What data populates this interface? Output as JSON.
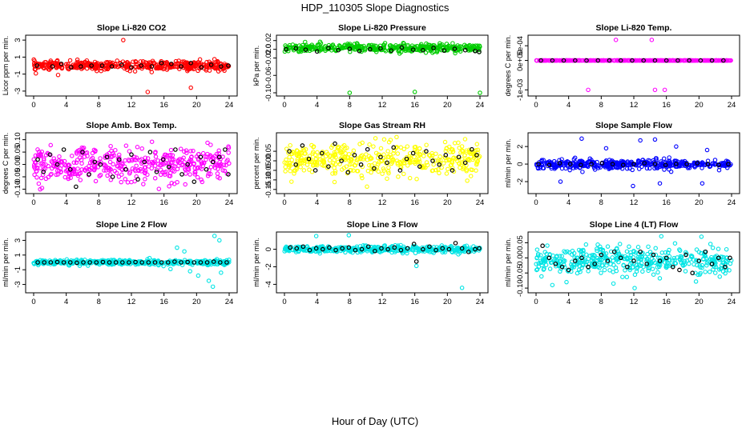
{
  "figure": {
    "title": "HDP_110305  Slope Diagnostics",
    "xlabel": "Hour of Day (UTC)"
  },
  "chart_data": [
    {
      "type": "scatter",
      "title": "Slope Li-820 CO2",
      "ylabel": "Licor ppm per min.",
      "color": "#ff0000",
      "xlim": [
        0,
        24
      ],
      "ylim": [
        -3.2,
        3.2
      ],
      "xticks": [
        0,
        4,
        8,
        12,
        16,
        20,
        24
      ],
      "yticks": [
        -3,
        -1,
        1,
        3
      ],
      "ytick_labels": [
        "-3",
        "-1",
        "1",
        "3"
      ],
      "noise": 0.35,
      "outliers": [
        [
          11,
          3.0
        ],
        [
          14,
          -3.1
        ],
        [
          19.3,
          -2.6
        ],
        [
          3,
          -1.1
        ]
      ],
      "black_series": [
        [
          0.4,
          0.0
        ],
        [
          2.3,
          -0.1
        ],
        [
          3.4,
          0.2
        ],
        [
          4.6,
          -0.2
        ],
        [
          5.8,
          -0.1
        ],
        [
          7.1,
          0.0
        ],
        [
          8.4,
          0.0
        ],
        [
          9.6,
          -0.1
        ],
        [
          10.8,
          0.1
        ],
        [
          12.0,
          -0.2
        ],
        [
          13.2,
          0.0
        ],
        [
          14.5,
          -0.1
        ],
        [
          15.7,
          0.3
        ],
        [
          16.9,
          0.2
        ],
        [
          18.1,
          -0.1
        ],
        [
          19.3,
          0.3
        ],
        [
          20.6,
          -0.2
        ],
        [
          21.8,
          0.1
        ],
        [
          23.0,
          -0.1
        ],
        [
          23.9,
          0.0
        ]
      ]
    },
    {
      "type": "scatter",
      "title": "Slope Li-820 Pressure",
      "ylabel": "kPa per min.",
      "color": "#00cc00",
      "xlim": [
        0,
        24
      ],
      "ylim": [
        -0.1,
        0.025
      ],
      "xticks": [
        0,
        4,
        8,
        12,
        16,
        20,
        24
      ],
      "yticks": [
        -0.1,
        -0.06,
        -0.02,
        0.0,
        0.02
      ],
      "ytick_labels": [
        "-0.10",
        "-0.06",
        "-0.02",
        "0.0",
        "0.02"
      ],
      "center": 0.003,
      "noise": 0.006,
      "outliers": [
        [
          8,
          -0.1
        ],
        [
          16,
          -0.098
        ],
        [
          24,
          -0.1
        ]
      ],
      "black_series": [
        [
          0.2,
          0.0
        ],
        [
          1.4,
          0.002
        ],
        [
          2.6,
          -0.001
        ],
        [
          4.0,
          -0.005
        ],
        [
          5.4,
          0.003
        ],
        [
          6.6,
          -0.002
        ],
        [
          8.0,
          0.001
        ],
        [
          9.2,
          -0.004
        ],
        [
          10.5,
          0.0
        ],
        [
          11.8,
          0.002
        ],
        [
          13.1,
          -0.003
        ],
        [
          14.4,
          0.004
        ],
        [
          15.8,
          -0.001
        ],
        [
          17.0,
          -0.002
        ],
        [
          18.3,
          0.003
        ],
        [
          19.6,
          -0.003
        ],
        [
          20.9,
          0.001
        ],
        [
          22.2,
          -0.002
        ],
        [
          23.4,
          -0.004
        ],
        [
          23.9,
          -0.006
        ]
      ]
    },
    {
      "type": "scatter",
      "title": "Slope Li-820 Temp.",
      "ylabel": "degrees C per min.",
      "color": "#ff00ff",
      "xlim": [
        0,
        24
      ],
      "ylim": [
        -0.0011,
        0.00075
      ],
      "xticks": [
        0,
        4,
        8,
        12,
        16,
        20,
        24
      ],
      "yticks": [
        -0.001,
        0.0,
        0.0005
      ],
      "ytick_labels": [
        "-1e-03",
        "0e+00",
        "5e-04"
      ],
      "center": 0,
      "noise": 2e-06,
      "outliers": [
        [
          9.8,
          0.0007
        ],
        [
          14.2,
          0.0007
        ],
        [
          6.4,
          -0.001
        ],
        [
          14.6,
          -0.001
        ],
        [
          15.8,
          -0.001
        ]
      ],
      "black_series": [
        [
          0.6,
          0.0
        ],
        [
          2.0,
          0.0
        ],
        [
          3.4,
          0.0
        ],
        [
          4.8,
          0.0
        ],
        [
          6.2,
          0.0
        ],
        [
          7.6,
          0.0
        ],
        [
          9.0,
          0.0
        ],
        [
          10.4,
          0.0
        ],
        [
          11.8,
          0.0
        ],
        [
          13.2,
          0.0
        ],
        [
          14.6,
          0.0
        ],
        [
          16.0,
          0.0
        ],
        [
          17.4,
          0.0
        ],
        [
          18.8,
          0.0
        ],
        [
          20.2,
          0.0
        ],
        [
          21.6,
          0.0
        ],
        [
          23.0,
          0.0
        ]
      ]
    },
    {
      "type": "scatter",
      "title": "Slope Amb. Box Temp.",
      "ylabel": "degrees C per min.",
      "color": "#ff00ff",
      "xlim": [
        0,
        24
      ],
      "ylim": [
        -0.105,
        0.115
      ],
      "xticks": [
        0,
        4,
        8,
        12,
        16,
        20,
        24
      ],
      "yticks": [
        -0.1,
        -0.05,
        0.0,
        0.05,
        0.1
      ],
      "ytick_labels": [
        "-0.10",
        "-0.05",
        "0.00",
        "0.05",
        "0.10"
      ],
      "center": 0,
      "noise": 0.045,
      "outliers": [],
      "black_series": [
        [
          0.5,
          0.02
        ],
        [
          1.2,
          -0.03
        ],
        [
          2.0,
          0.04
        ],
        [
          2.9,
          0.0
        ],
        [
          3.7,
          0.06
        ],
        [
          4.5,
          -0.02
        ],
        [
          5.2,
          -0.09
        ],
        [
          6.0,
          0.05
        ],
        [
          6.8,
          -0.04
        ],
        [
          7.5,
          0.01
        ],
        [
          8.2,
          0.0
        ],
        [
          9.0,
          0.03
        ],
        [
          9.7,
          -0.05
        ],
        [
          10.5,
          0.02
        ],
        [
          11.3,
          -0.02
        ],
        [
          12.0,
          0.04
        ],
        [
          12.8,
          -0.06
        ],
        [
          13.6,
          0.01
        ],
        [
          14.3,
          0.05
        ],
        [
          15.1,
          -0.03
        ],
        [
          15.9,
          0.02
        ],
        [
          16.6,
          -0.01
        ],
        [
          17.4,
          0.06
        ],
        [
          18.2,
          -0.04
        ],
        [
          18.9,
          0.0
        ],
        [
          19.7,
          -0.07
        ],
        [
          20.5,
          0.03
        ],
        [
          21.2,
          -0.02
        ],
        [
          22.0,
          0.01
        ],
        [
          22.8,
          0.03
        ],
        [
          23.5,
          0.06
        ],
        [
          23.9,
          -0.04
        ]
      ]
    },
    {
      "type": "scatter",
      "title": "Slope Gas Stream RH",
      "ylabel": "percent per min.",
      "color": "#ffff00",
      "xlim": [
        0,
        24
      ],
      "ylim": [
        -0.155,
        0.13
      ],
      "xticks": [
        0,
        4,
        8,
        12,
        16,
        20,
        24
      ],
      "yticks": [
        -0.15,
        -0.1,
        -0.05,
        0.0,
        0.05
      ],
      "ytick_labels": [
        "-0.15",
        "-0.10",
        "-0.05",
        "0.00",
        "0.05"
      ],
      "center": 0,
      "noise": 0.06,
      "outliers": [],
      "black_series": [
        [
          0.6,
          0.05
        ],
        [
          1.4,
          -0.02
        ],
        [
          2.2,
          0.08
        ],
        [
          3.0,
          0.01
        ],
        [
          3.8,
          -0.05
        ],
        [
          4.6,
          0.04
        ],
        [
          5.4,
          -0.03
        ],
        [
          6.2,
          0.09
        ],
        [
          7.0,
          0.0
        ],
        [
          7.8,
          -0.06
        ],
        [
          8.6,
          0.03
        ],
        [
          9.4,
          -0.02
        ],
        [
          10.2,
          0.06
        ],
        [
          11.0,
          -0.04
        ],
        [
          11.8,
          0.02
        ],
        [
          12.6,
          -0.01
        ],
        [
          13.4,
          0.07
        ],
        [
          14.2,
          -0.05
        ],
        [
          15.0,
          0.01
        ],
        [
          15.8,
          0.04
        ],
        [
          16.6,
          -0.03
        ],
        [
          17.4,
          0.05
        ],
        [
          18.2,
          0.0
        ],
        [
          19.0,
          -0.02
        ],
        [
          19.8,
          0.03
        ],
        [
          20.6,
          -0.05
        ],
        [
          21.4,
          0.02
        ],
        [
          22.2,
          -0.01
        ],
        [
          23.0,
          0.06
        ],
        [
          23.6,
          0.03
        ]
      ]
    },
    {
      "type": "scatter",
      "title": "Slope Sample Flow",
      "ylabel": "ml/min per min.",
      "color": "#0000ff",
      "xlim": [
        0,
        24
      ],
      "ylim": [
        -3,
        3.2
      ],
      "xticks": [
        0,
        4,
        8,
        12,
        16,
        20,
        24
      ],
      "yticks": [
        -2,
        0,
        2
      ],
      "ytick_labels": [
        "-2",
        "0",
        "2"
      ],
      "center": 0,
      "noise": 0.35,
      "outliers": [
        [
          5.6,
          2.9
        ],
        [
          12.8,
          2.7
        ],
        [
          14.6,
          2.8
        ],
        [
          15.2,
          -2.2
        ],
        [
          11.9,
          -2.5
        ],
        [
          20.4,
          -2.2
        ],
        [
          3.0,
          -2.0
        ],
        [
          17.2,
          2.0
        ],
        [
          8.6,
          1.8
        ],
        [
          21.0,
          1.6
        ]
      ],
      "black_series": [
        [
          0.3,
          0.0
        ],
        [
          1.6,
          -0.1
        ],
        [
          2.9,
          0.1
        ],
        [
          4.2,
          0.0
        ],
        [
          5.5,
          -0.1
        ],
        [
          6.8,
          0.0
        ],
        [
          8.1,
          0.1
        ],
        [
          9.4,
          0.0
        ],
        [
          10.7,
          -0.1
        ],
        [
          12.0,
          0.0
        ],
        [
          13.3,
          0.1
        ],
        [
          14.6,
          0.0
        ],
        [
          15.9,
          -0.1
        ],
        [
          17.2,
          0.0
        ],
        [
          18.5,
          0.0
        ],
        [
          19.8,
          0.1
        ],
        [
          21.1,
          0.0
        ],
        [
          22.4,
          -0.1
        ],
        [
          23.6,
          0.0
        ]
      ]
    },
    {
      "type": "scatter",
      "title": "Slope Line 2 Flow",
      "ylabel": "ml/min per min.",
      "color": "#00e5e5",
      "xlim": [
        0,
        24
      ],
      "ylim": [
        -3.7,
        3.7
      ],
      "xticks": [
        0,
        4,
        8,
        12,
        16,
        20,
        24
      ],
      "yticks": [
        -3,
        -1,
        1,
        3
      ],
      "ytick_labels": [
        "-3",
        "-1",
        "1",
        "3"
      ],
      "center": 0,
      "noise": 0.22,
      "outliers": [
        [
          22.2,
          3.6
        ],
        [
          22.8,
          3.0
        ],
        [
          21.5,
          -2.5
        ],
        [
          22.0,
          -3.3
        ],
        [
          17.6,
          2.0
        ],
        [
          18.5,
          1.5
        ],
        [
          20.2,
          -1.8
        ],
        [
          23.0,
          -1.4
        ],
        [
          16.8,
          -0.9
        ],
        [
          19.2,
          -1.2
        ]
      ],
      "black_series": [
        [
          0.5,
          0.0
        ],
        [
          1.3,
          0.0
        ],
        [
          2.1,
          0.0
        ],
        [
          2.9,
          0.05
        ],
        [
          3.7,
          0.0
        ],
        [
          4.5,
          0.0
        ],
        [
          5.3,
          -0.05
        ],
        [
          6.1,
          0.0
        ],
        [
          6.9,
          0.0
        ],
        [
          7.7,
          0.0
        ],
        [
          8.5,
          0.05
        ],
        [
          9.3,
          0.0
        ],
        [
          10.1,
          0.0
        ],
        [
          10.9,
          0.0
        ],
        [
          11.7,
          0.0
        ],
        [
          12.5,
          0.05
        ],
        [
          13.3,
          0.0
        ],
        [
          14.1,
          0.0
        ],
        [
          14.9,
          0.0
        ],
        [
          15.7,
          0.0
        ],
        [
          16.5,
          0.0
        ],
        [
          17.3,
          0.1
        ],
        [
          18.1,
          0.0
        ],
        [
          18.9,
          0.05
        ],
        [
          19.7,
          0.0
        ],
        [
          20.5,
          0.0
        ],
        [
          21.3,
          0.0
        ],
        [
          22.1,
          0.1
        ],
        [
          22.9,
          0.0
        ],
        [
          23.7,
          0.0
        ]
      ]
    },
    {
      "type": "scatter",
      "title": "Slope Line 3 Flow",
      "ylabel": "ml/min per min.",
      "color": "#00e5e5",
      "xlim": [
        0,
        24
      ],
      "ylim": [
        -4.6,
        1.6
      ],
      "xticks": [
        0,
        4,
        8,
        12,
        16,
        20,
        24
      ],
      "yticks": [
        -4,
        -2,
        0
      ],
      "ytick_labels": [
        "-4",
        "-2",
        "0"
      ],
      "center": 0,
      "noise": 0.25,
      "outliers": [
        [
          7.9,
          1.6
        ],
        [
          3.9,
          1.5
        ],
        [
          21.8,
          -4.4
        ],
        [
          16.2,
          -1.9
        ]
      ],
      "black_series": [
        [
          0.7,
          0.2
        ],
        [
          1.5,
          0.1
        ],
        [
          2.3,
          0.3
        ],
        [
          3.1,
          -0.1
        ],
        [
          3.9,
          0.1
        ],
        [
          4.7,
          0.0
        ],
        [
          5.5,
          0.2
        ],
        [
          6.3,
          -0.1
        ],
        [
          7.1,
          0.1
        ],
        [
          7.9,
          0.2
        ],
        [
          8.7,
          -0.1
        ],
        [
          9.5,
          0.0
        ],
        [
          10.3,
          0.3
        ],
        [
          11.1,
          -0.2
        ],
        [
          11.9,
          0.1
        ],
        [
          12.7,
          0.0
        ],
        [
          13.5,
          0.2
        ],
        [
          14.3,
          -0.1
        ],
        [
          15.1,
          0.1
        ],
        [
          15.9,
          0.6
        ],
        [
          16.2,
          -1.4
        ],
        [
          17.0,
          0.0
        ],
        [
          17.8,
          0.3
        ],
        [
          18.6,
          -0.1
        ],
        [
          19.4,
          0.1
        ],
        [
          20.2,
          0.0
        ],
        [
          21.0,
          0.7
        ],
        [
          21.8,
          0.1
        ],
        [
          22.6,
          -0.3
        ],
        [
          23.4,
          0.0
        ],
        [
          23.9,
          0.1
        ]
      ]
    },
    {
      "type": "scatter",
      "title": "Slope Line 4 (LT) Flow",
      "ylabel": "ml/min per min.",
      "color": "#00e5e5",
      "xlim": [
        0,
        24
      ],
      "ylim": [
        -0.105,
        0.075
      ],
      "xticks": [
        0,
        4,
        8,
        12,
        16,
        20,
        24
      ],
      "yticks": [
        -0.1,
        -0.05,
        0.0,
        0.05
      ],
      "ytick_labels": [
        "-0.10",
        "-0.05",
        "0.00",
        "0.05"
      ],
      "center": -0.01,
      "noise": 0.03,
      "outliers": [
        [
          20.3,
          0.07
        ],
        [
          12.1,
          -0.1
        ],
        [
          2.0,
          -0.09
        ],
        [
          9.5,
          -0.085
        ]
      ],
      "black_series": [
        [
          0.8,
          0.04
        ],
        [
          1.6,
          0.0
        ],
        [
          2.4,
          -0.02
        ],
        [
          3.2,
          -0.03
        ],
        [
          4.0,
          -0.04
        ],
        [
          4.8,
          -0.01
        ],
        [
          5.6,
          0.0
        ],
        [
          6.4,
          -0.03
        ],
        [
          7.2,
          -0.02
        ],
        [
          8.0,
          0.01
        ],
        [
          8.8,
          -0.01
        ],
        [
          9.6,
          0.02
        ],
        [
          10.4,
          0.0
        ],
        [
          11.2,
          -0.03
        ],
        [
          12.0,
          -0.01
        ],
        [
          12.8,
          0.02
        ],
        [
          13.6,
          -0.02
        ],
        [
          14.4,
          0.01
        ],
        [
          15.2,
          -0.01
        ],
        [
          16.0,
          0.0
        ],
        [
          16.8,
          -0.03
        ],
        [
          17.6,
          -0.04
        ],
        [
          18.4,
          0.01
        ],
        [
          19.2,
          -0.05
        ],
        [
          20.0,
          -0.01
        ],
        [
          20.8,
          0.02
        ],
        [
          21.6,
          -0.02
        ],
        [
          22.4,
          0.0
        ],
        [
          23.2,
          -0.03
        ],
        [
          23.8,
          0.0
        ]
      ]
    }
  ]
}
